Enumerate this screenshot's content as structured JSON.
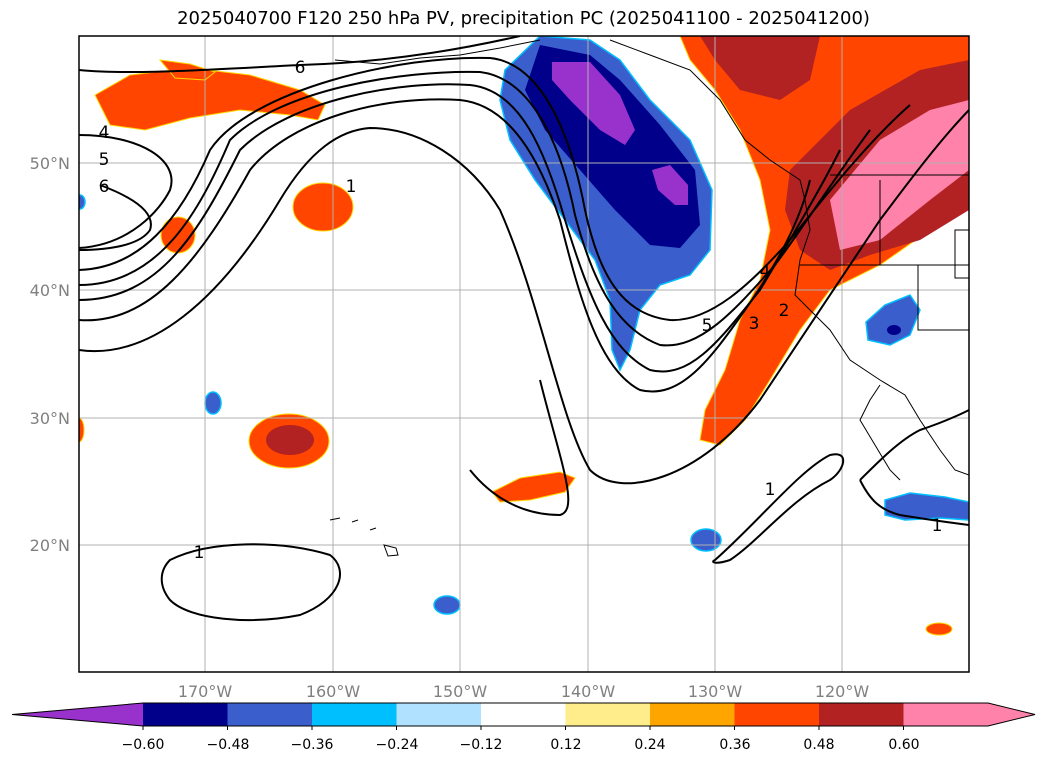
{
  "title": "2025040700 F120 250 hPa PV, precipitation PC (2025041100 - 2025041200)",
  "latitude_labels": [
    "50°N",
    "40°N",
    "30°N",
    "20°N"
  ],
  "longitude_labels": [
    "170°W",
    "160°W",
    "150°W",
    "140°W",
    "130°W",
    "120°W"
  ],
  "contour_labels": [
    "6",
    "4",
    "5",
    "6",
    "1",
    "5",
    "3",
    "2",
    "4",
    "1",
    "1",
    "1"
  ],
  "colorbar": {
    "ticks": [
      "−0.60",
      "−0.48",
      "−0.36",
      "−0.24",
      "−0.12",
      "0.12",
      "0.24",
      "0.36",
      "0.48",
      "0.60"
    ],
    "colors": [
      "#9932cc",
      "#00008b",
      "#3a5fcd",
      "#00bfff",
      "#b0e2ff",
      "#ffffff",
      "#ffec8b",
      "#ffa500",
      "#ff4500",
      "#b22222",
      "#ff82ab",
      "#ff82ab"
    ]
  }
}
